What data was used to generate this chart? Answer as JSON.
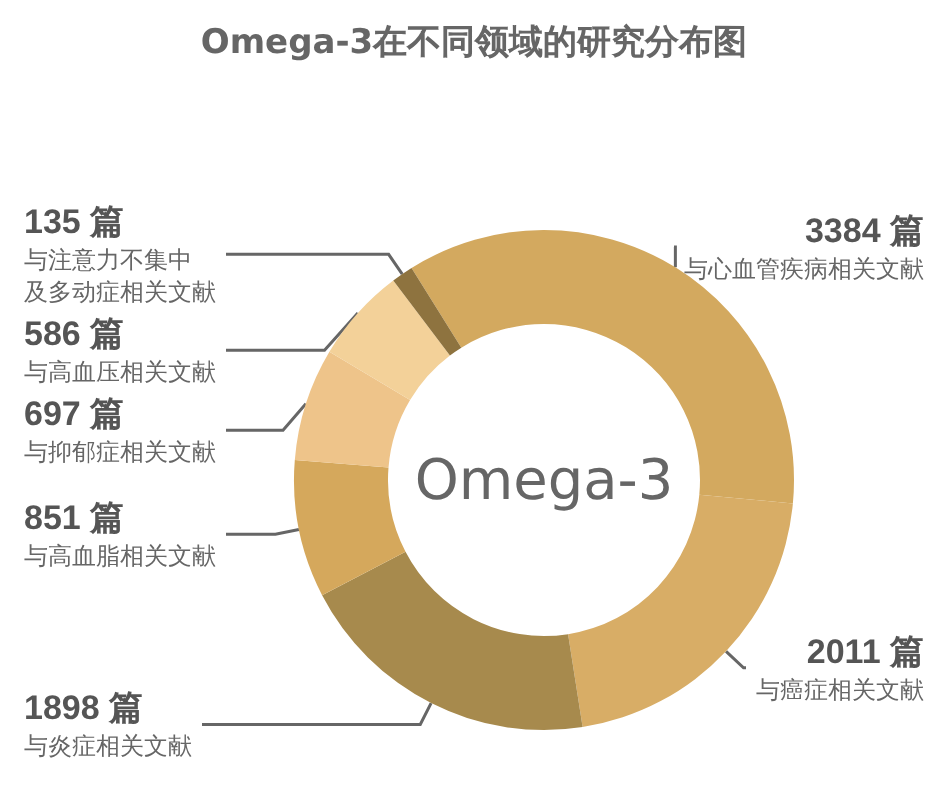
{
  "chart_data": {
    "type": "donut",
    "title": "Omega-3在不同领域的研究分布图",
    "categories": [
      "与心血管疾病相关文献",
      "与癌症相关文献",
      "与炎症相关文献",
      "与高血脂相关文献",
      "与抑郁症相关文献",
      "与高血压相关文献",
      "与注意力不集中及多动症相关文献"
    ],
    "values": [
      3384,
      2011,
      1898,
      851,
      697,
      586,
      135
    ],
    "colors": [
      "#d3a95f",
      "#d8ad66",
      "#a78a4d",
      "#d5a85c",
      "#eec48a",
      "#f3d199",
      "#8e733f"
    ],
    "value_labels": [
      "3384 篇",
      "2011 篇",
      "1898 篇",
      "851 篇",
      "697 篇",
      "586 篇",
      "135 篇"
    ],
    "annotations": [
      "Omega-3"
    ],
    "legend": false
  }
}
